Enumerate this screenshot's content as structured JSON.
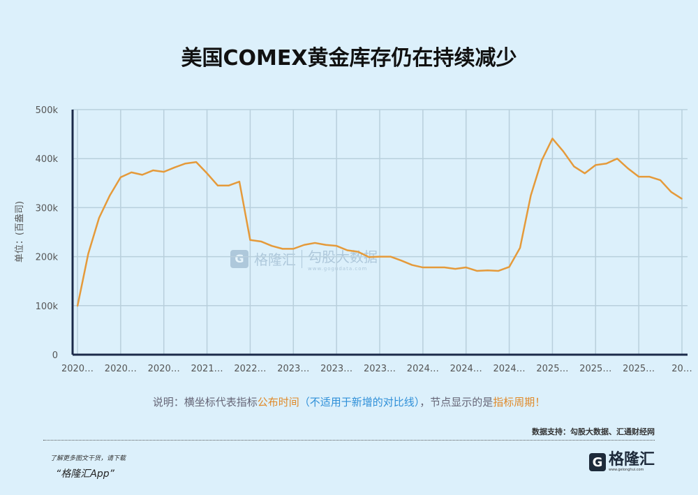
{
  "title": "美国COMEX黄金库存仍在持续减少",
  "chart_data": {
    "type": "line",
    "title": "美国COMEX黄金库存仍在持续减少",
    "ylabel": "单位：(百盎司)",
    "xlabel": "",
    "ylim": [
      0,
      500000
    ],
    "yticks": [
      0,
      100000,
      200000,
      300000,
      400000,
      500000
    ],
    "ytick_labels": [
      "0",
      "100k",
      "200k",
      "300k",
      "400k",
      "500k"
    ],
    "xtick_labels": [
      "2020…",
      "2020…",
      "2020…",
      "2021…",
      "2022…",
      "2023…",
      "2023…",
      "2023…",
      "2024…",
      "2024…",
      "2024…",
      "2025…",
      "2025…",
      "2025…",
      "20…"
    ],
    "grid": true,
    "legend": "none",
    "series": [
      {
        "name": "COMEX黄金库存",
        "color": "#e59a3a",
        "values": [
          99000,
          206000,
          279000,
          325000,
          362000,
          372000,
          367000,
          376000,
          373000,
          382000,
          390000,
          393000,
          370000,
          345000,
          345000,
          353000,
          234000,
          231000,
          222000,
          216000,
          216000,
          224000,
          228000,
          224000,
          222000,
          213000,
          210000,
          199000,
          200000,
          200000,
          192000,
          183000,
          178000,
          178000,
          178000,
          175000,
          178000,
          171000,
          172000,
          171000,
          179000,
          218000,
          325000,
          396000,
          441000,
          415000,
          384000,
          370000,
          387000,
          390000,
          400000,
          380000,
          363000,
          363000,
          356000,
          332000,
          318000
        ]
      }
    ]
  },
  "note": {
    "p1": "说明：横坐标代表指标",
    "p2": "公布时间",
    "p3": "（不适用于新增的对比线）",
    "p4": "，节点显示的是",
    "p5": "指标周期",
    "p6": "！"
  },
  "source": "数据支持：勾股大数据、汇通财经网",
  "promo": {
    "line1": "了解更多图文干货，请下载",
    "line2": "“格隆汇App”"
  },
  "logo": {
    "mark": "G",
    "name": "格隆汇",
    "url": "www.gelonghui.com"
  },
  "watermark": {
    "brand1": "格隆汇",
    "brand2": "勾股大数据",
    "url": "www.gogudata.com"
  }
}
